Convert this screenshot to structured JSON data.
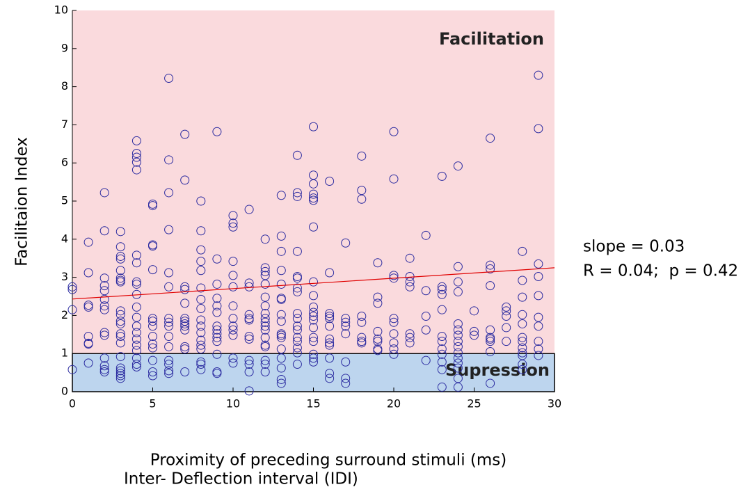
{
  "chart_data": {
    "type": "scatter",
    "x_label": [
      "Proximity of preceding surround stimuli (ms)",
      "Inter- Deflection interval (IDI)"
    ],
    "y_label": "Facilitaion Index",
    "annotations": [
      "slope = 0.03",
      "R = 0.04;  p = 0.42"
    ],
    "regions": [
      {
        "label": "Facilitation",
        "range": [
          1,
          10
        ],
        "color": "#fadadd"
      },
      {
        "label": "Supression",
        "range": [
          0,
          1
        ],
        "color": "#bdd5ee"
      }
    ],
    "color": "#2a2aa0",
    "x": [
      0,
      1,
      2,
      3,
      4,
      5,
      6,
      7,
      8,
      9,
      10,
      11,
      12,
      13,
      14,
      15,
      16,
      17,
      18,
      19,
      20,
      21,
      22,
      23,
      24,
      25,
      26,
      27,
      28,
      29
    ],
    "y": [
      [
        2.75,
        2.68,
        2.15,
        0.58
      ],
      [
        3.92,
        3.12,
        2.27,
        2.22,
        1.45,
        1.27,
        1.25,
        0.75
      ],
      [
        5.22,
        4.22,
        2.98,
        2.78,
        2.65,
        2.42,
        2.25,
        2.15,
        1.55,
        1.48,
        0.88,
        0.68,
        0.58,
        0.52
      ],
      [
        4.2,
        3.8,
        3.55,
        3.48,
        3.18,
        2.98,
        2.92,
        2.88,
        2.12,
        2.02,
        1.85,
        1.78,
        1.52,
        1.45,
        1.28,
        0.92,
        0.62,
        0.55,
        0.48,
        0.42,
        0.35
      ],
      [
        6.58,
        6.25,
        6.15,
        6.02,
        5.82,
        3.58,
        3.38,
        2.88,
        2.82,
        2.55,
        2.22,
        1.95,
        1.72,
        1.55,
        1.38,
        1.22,
        1.08,
        0.88,
        0.72,
        0.65
      ],
      [
        4.92,
        4.88,
        3.85,
        3.82,
        3.2,
        1.92,
        1.85,
        1.72,
        1.45,
        1.25,
        1.15,
        0.82,
        0.52,
        0.42
      ],
      [
        8.22,
        6.08,
        5.22,
        4.25,
        3.12,
        2.75,
        1.92,
        1.82,
        1.72,
        1.45,
        1.18,
        0.82,
        0.72,
        0.55,
        0.48
      ],
      [
        6.75,
        5.55,
        2.75,
        2.68,
        2.32,
        1.92,
        1.85,
        1.78,
        1.72,
        1.62,
        1.18,
        1.12,
        0.52
      ],
      [
        5.0,
        4.22,
        3.72,
        3.42,
        3.18,
        2.72,
        2.42,
        2.18,
        1.88,
        1.72,
        1.55,
        1.35,
        1.22,
        1.12,
        0.78,
        0.72,
        0.58
      ],
      [
        6.82,
        3.48,
        2.82,
        2.45,
        2.25,
        2.08,
        1.72,
        1.62,
        1.52,
        1.42,
        1.32,
        0.98,
        0.52,
        0.48
      ],
      [
        4.62,
        4.42,
        4.32,
        3.42,
        3.05,
        2.75,
        2.25,
        1.92,
        1.72,
        1.62,
        1.48,
        0.88,
        0.75
      ],
      [
        4.78,
        2.85,
        2.75,
        2.02,
        1.92,
        1.88,
        1.45,
        1.38,
        0.82,
        0.72,
        0.52,
        0.02
      ],
      [
        4.0,
        3.25,
        3.15,
        3.05,
        2.82,
        2.48,
        2.25,
        2.05,
        1.92,
        1.82,
        1.72,
        1.62,
        1.42,
        1.22,
        1.18,
        0.82,
        0.72,
        0.52
      ],
      [
        5.15,
        4.08,
        3.68,
        3.18,
        2.82,
        2.45,
        2.42,
        2.02,
        1.85,
        1.52,
        1.48,
        1.42,
        1.12,
        0.88,
        0.62,
        0.32,
        0.22
      ],
      [
        6.2,
        5.22,
        5.12,
        3.68,
        3.02,
        2.98,
        2.72,
        2.62,
        2.05,
        1.92,
        1.72,
        1.62,
        1.42,
        1.32,
        1.15,
        1.02,
        0.72
      ],
      [
        6.95,
        5.68,
        5.45,
        5.18,
        5.08,
        5.02,
        4.32,
        2.88,
        2.52,
        2.22,
        2.08,
        1.98,
        1.88,
        1.68,
        1.42,
        1.32,
        0.98,
        0.88,
        0.78
      ],
      [
        5.52,
        3.12,
        2.05,
        1.98,
        1.92,
        1.72,
        1.38,
        1.28,
        1.22,
        0.88,
        0.48,
        0.35
      ],
      [
        3.9,
        1.92,
        1.82,
        1.72,
        1.52,
        0.78,
        0.35,
        0.22
      ],
      [
        6.18,
        5.28,
        5.05,
        1.98,
        1.82,
        1.42,
        1.32,
        1.28
      ],
      [
        3.38,
        2.48,
        2.32,
        1.58,
        1.38,
        1.32,
        1.12,
        1.08
      ],
      [
        6.82,
        5.58,
        3.05,
        2.98,
        1.92,
        1.82,
        1.52,
        1.28,
        1.12,
        0.98
      ],
      [
        3.5,
        3.02,
        2.88,
        2.75,
        1.52,
        1.42,
        1.28
      ],
      [
        4.1,
        2.65,
        1.98,
        1.62,
        0.82
      ],
      [
        5.65,
        2.75,
        2.68,
        2.55,
        2.15,
        1.45,
        1.32,
        1.12,
        0.98,
        0.78,
        0.58,
        0.12
      ],
      [
        5.92,
        3.28,
        2.88,
        2.62,
        1.78,
        1.62,
        1.48,
        1.32,
        1.18,
        1.02,
        0.88,
        0.75,
        0.62,
        0.35,
        0.12
      ],
      [
        2.12,
        1.58,
        1.48
      ],
      [
        6.65,
        3.32,
        3.22,
        2.78,
        1.62,
        1.42,
        1.38,
        1.32,
        1.05,
        0.22
      ],
      [
        2.22,
        2.12,
        1.98,
        1.68,
        1.32
      ],
      [
        3.68,
        2.92,
        2.48,
        2.02,
        1.78,
        1.42,
        1.32,
        1.15,
        1.02,
        0.95,
        0.72,
        0.58
      ],
      [
        8.3,
        6.9,
        3.35,
        3.02,
        2.52,
        1.95,
        1.72,
        1.32,
        1.12,
        0.95
      ]
    ],
    "fit": {
      "x": [
        0,
        30
      ],
      "y": [
        2.43,
        3.25
      ],
      "color": "#e00000"
    },
    "xlim": [
      0,
      30
    ],
    "xticks": [
      0,
      5,
      10,
      15,
      20,
      25,
      30
    ],
    "ylim": [
      0,
      10
    ],
    "yticks": [
      0,
      1,
      2,
      3,
      4,
      5,
      6,
      7,
      8,
      9,
      10
    ]
  }
}
